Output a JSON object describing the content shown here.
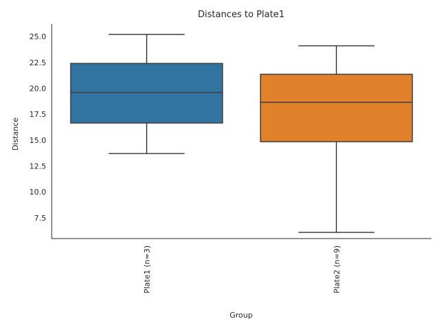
{
  "chart_data": {
    "type": "boxplot",
    "title": "Distances to Plate1",
    "xlabel": "Group",
    "ylabel": "Distance",
    "ylim": [
      5.5,
      26.2
    ],
    "yticks": [
      "7.5",
      "10.0",
      "12.5",
      "15.0",
      "17.5",
      "20.0",
      "22.5",
      "25.0"
    ],
    "grid": false,
    "categories": [
      "Plate1 (n=3)",
      "Plate2 (n=9)"
    ],
    "boxes": [
      {
        "category": "Plate1 (n=3)",
        "min": 13.7,
        "q1": 16.65,
        "median": 19.6,
        "q3": 22.4,
        "max": 25.2,
        "color": "#3274a1"
      },
      {
        "category": "Plate2 (n=9)",
        "min": 6.1,
        "q1": 14.85,
        "median": 18.65,
        "q3": 21.35,
        "max": 24.1,
        "color": "#e1812c"
      }
    ],
    "line_color": "#3d3d3d"
  }
}
